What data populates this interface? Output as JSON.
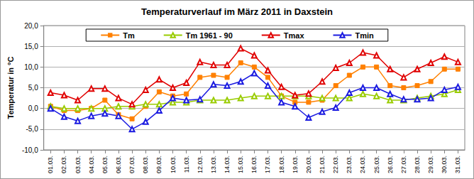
{
  "chart_data": {
    "type": "line",
    "title": "Temperaturverlauf im März 2011 in Daxstein",
    "y_label": "Temperatur in °C",
    "categories": [
      "01.03.",
      "02.03.",
      "03.03.",
      "04.03.",
      "05.03.",
      "06.03.",
      "07.03.",
      "08.03.",
      "09.03.",
      "10.03.",
      "11.03.",
      "12.03.",
      "13.03.",
      "14.03.",
      "15.03.",
      "16.03.",
      "17.03.",
      "18.03.",
      "19.03.",
      "20.03.",
      "21.03.",
      "22.03.",
      "23.03.",
      "24.03.",
      "25.03.",
      "26.03.",
      "27.03.",
      "28.03.",
      "29.03.",
      "30.03.",
      "31.03."
    ],
    "series": [
      {
        "name": "Tm",
        "color": "#ff8000",
        "marker": "square",
        "values": [
          0.5,
          -0.5,
          -0.5,
          0,
          2,
          -1.5,
          -2.5,
          0.5,
          4,
          3,
          3.5,
          7.5,
          8,
          7.5,
          11,
          10,
          7.5,
          3,
          1.5,
          1.5,
          2,
          5.5,
          8,
          10,
          10,
          5.5,
          5,
          5.5,
          6.5,
          9.5,
          9.5
        ]
      },
      {
        "name": "Tm 1961 - 90",
        "color": "#99cc00",
        "marker": "triangle",
        "values": [
          0.5,
          0,
          0,
          0,
          0,
          0.5,
          0.5,
          1,
          1,
          1.5,
          1.5,
          2,
          2,
          2,
          2.5,
          3,
          3,
          3,
          3,
          3,
          2.5,
          2.5,
          2.5,
          3.5,
          3,
          2,
          2,
          2.5,
          3,
          3.5,
          4.5
        ]
      },
      {
        "name": "Tmax",
        "color": "#e00000",
        "marker": "triangle",
        "values": [
          3.8,
          3.2,
          2,
          4.8,
          4.8,
          2.5,
          1,
          4.5,
          7,
          5,
          6.2,
          11.2,
          10.5,
          10.5,
          14.5,
          12.8,
          9.2,
          5.2,
          3.2,
          3.6,
          6.5,
          9.8,
          11,
          13.5,
          12.8,
          9.5,
          7.5,
          9.5,
          11,
          12.5,
          11.2
        ]
      },
      {
        "name": "Tmin",
        "color": "#1a1ae0",
        "marker": "triangle",
        "values": [
          0,
          -2,
          -3,
          -1.8,
          -1.2,
          -1.8,
          -5,
          -3.2,
          -0.5,
          2.5,
          2,
          2.2,
          5.8,
          5.5,
          6.5,
          8.5,
          5.5,
          1.5,
          0.5,
          -2.2,
          -0.8,
          0.2,
          3.8,
          5,
          5,
          3.5,
          2.2,
          2.2,
          2.5,
          4.5,
          5.2
        ]
      }
    ],
    "ylim": [
      -10,
      20
    ],
    "yticks": [
      {
        "value": -10,
        "label": "-10,0"
      },
      {
        "value": -5,
        "label": "-5,0"
      },
      {
        "value": 0,
        "label": "0,0"
      },
      {
        "value": 5,
        "label": "5,0"
      },
      {
        "value": 10,
        "label": "10,0"
      },
      {
        "value": 15,
        "label": "15,0"
      },
      {
        "value": 20,
        "label": "20,0"
      }
    ],
    "grid": true,
    "legend": "top"
  }
}
